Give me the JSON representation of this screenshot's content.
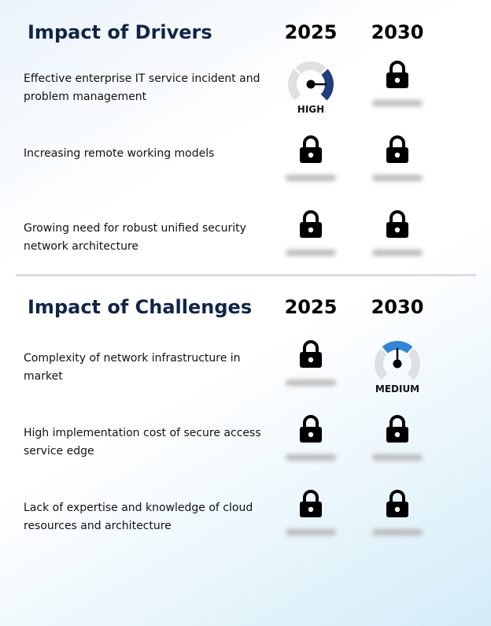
{
  "drivers": {
    "title": "Impact of Drivers",
    "years": [
      "2025",
      "2030"
    ],
    "rows": [
      {
        "label": "Effective enterprise IT service incident and problem management",
        "c2025": {
          "type": "gauge",
          "level": "HIGH",
          "color": "#1f3f7a"
        },
        "c2030": {
          "type": "locked"
        }
      },
      {
        "label": "Increasing remote working models",
        "c2025": {
          "type": "locked"
        },
        "c2030": {
          "type": "locked"
        }
      },
      {
        "label": "Growing need for robust unified security network architecture",
        "c2025": {
          "type": "locked"
        },
        "c2030": {
          "type": "locked"
        }
      }
    ]
  },
  "challenges": {
    "title": "Impact of Challenges",
    "years": [
      "2025",
      "2030"
    ],
    "rows": [
      {
        "label": "Complexity of network infrastructure in market",
        "c2025": {
          "type": "locked"
        },
        "c2030": {
          "type": "gauge",
          "level": "MEDIUM",
          "color": "#2f86d8"
        }
      },
      {
        "label": "High implementation cost of secure access service edge",
        "c2025": {
          "type": "locked"
        },
        "c2030": {
          "type": "locked"
        }
      },
      {
        "label": "Lack of expertise and knowledge of cloud resources and architecture",
        "c2025": {
          "type": "locked"
        },
        "c2030": {
          "type": "locked"
        }
      }
    ]
  },
  "icons": {
    "locked": "lock-icon",
    "gauge": "gauge-icon"
  }
}
